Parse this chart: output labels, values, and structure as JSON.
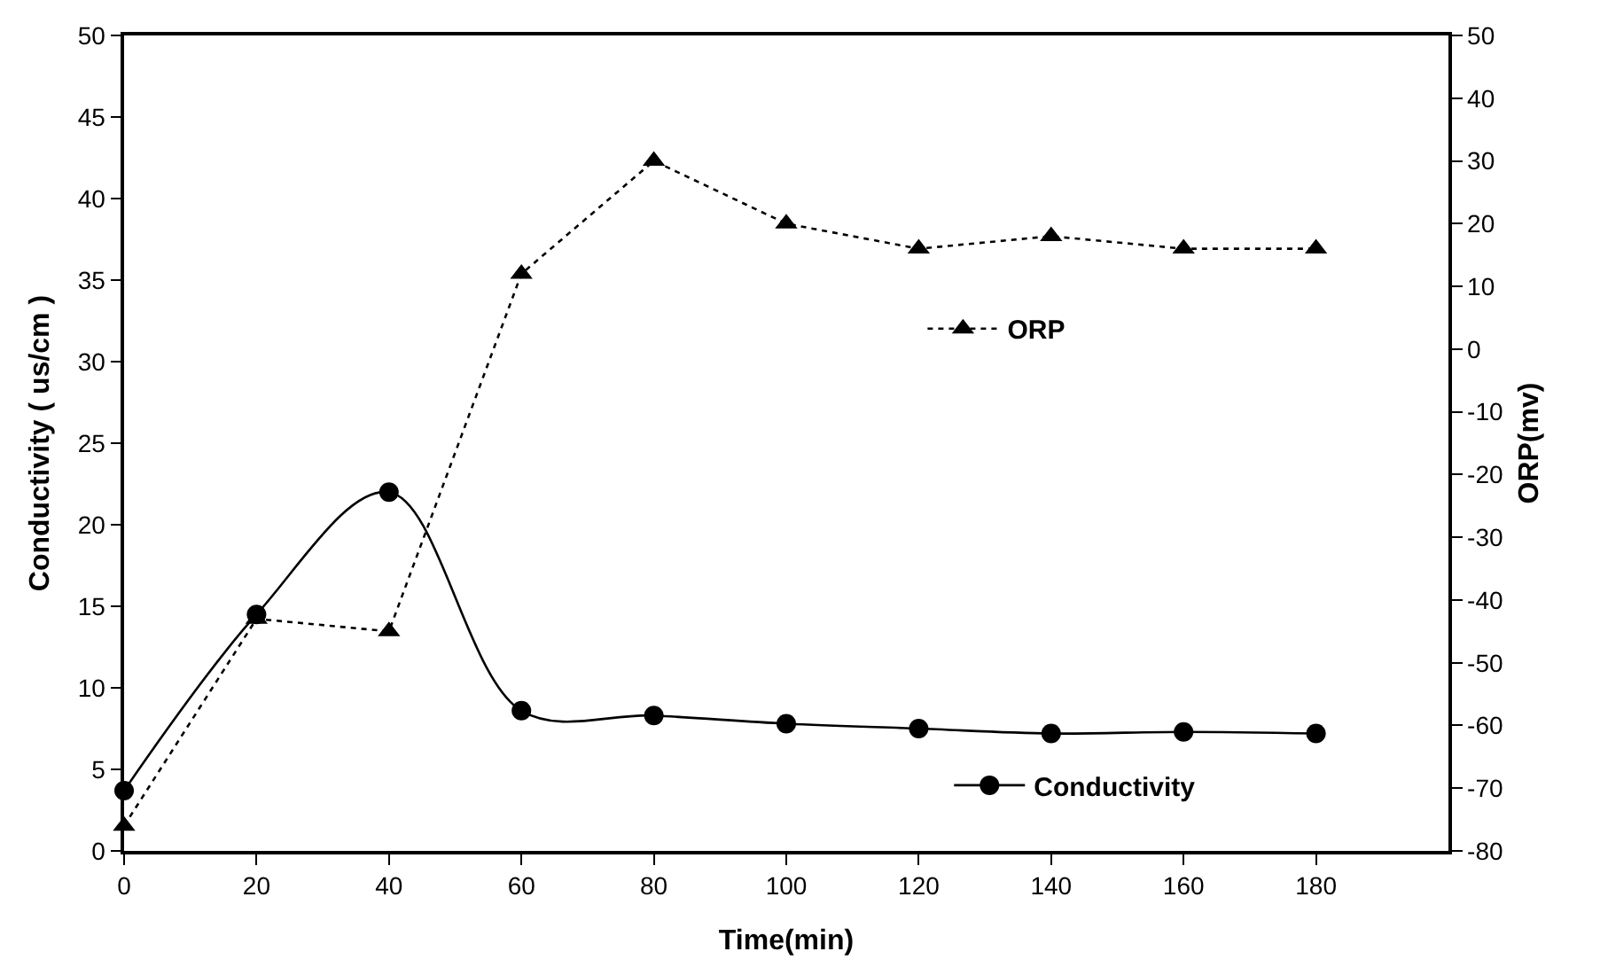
{
  "chart_data": {
    "type": "line",
    "xlabel": "Time(min)",
    "ylabel": "Conductivity ( us/cm )",
    "y2label": "ORP(mv)",
    "x": [
      0,
      20,
      40,
      60,
      80,
      100,
      120,
      140,
      160,
      180
    ],
    "series": [
      {
        "name": "Conductivity",
        "color": "#000000",
        "marker": "circle",
        "line_style": "solid",
        "values": [
          3.7,
          14.5,
          22,
          8.6,
          8.3,
          7.8,
          7.5,
          7.2,
          7.3,
          7.2
        ]
      },
      {
        "name": "ORP",
        "color": "#000000",
        "marker": "triangle",
        "line_style": "dotted",
        "axis": "y2",
        "values": [
          -76,
          -43,
          -45,
          12,
          30,
          20,
          16,
          18,
          16,
          16
        ]
      }
    ],
    "xlim": [
      0,
      200
    ],
    "xticks": [
      0,
      20,
      40,
      60,
      80,
      100,
      120,
      140,
      160,
      180
    ],
    "ylim": [
      0,
      50
    ],
    "yticks": [
      0,
      5,
      10,
      15,
      20,
      25,
      30,
      35,
      40,
      45,
      50
    ],
    "y2lim": [
      -80,
      50
    ],
    "y2ticks": [
      -80,
      -70,
      -60,
      -50,
      -40,
      -30,
      -20,
      -10,
      0,
      10,
      20,
      30,
      40,
      50
    ],
    "grid": false,
    "legend": "right"
  }
}
